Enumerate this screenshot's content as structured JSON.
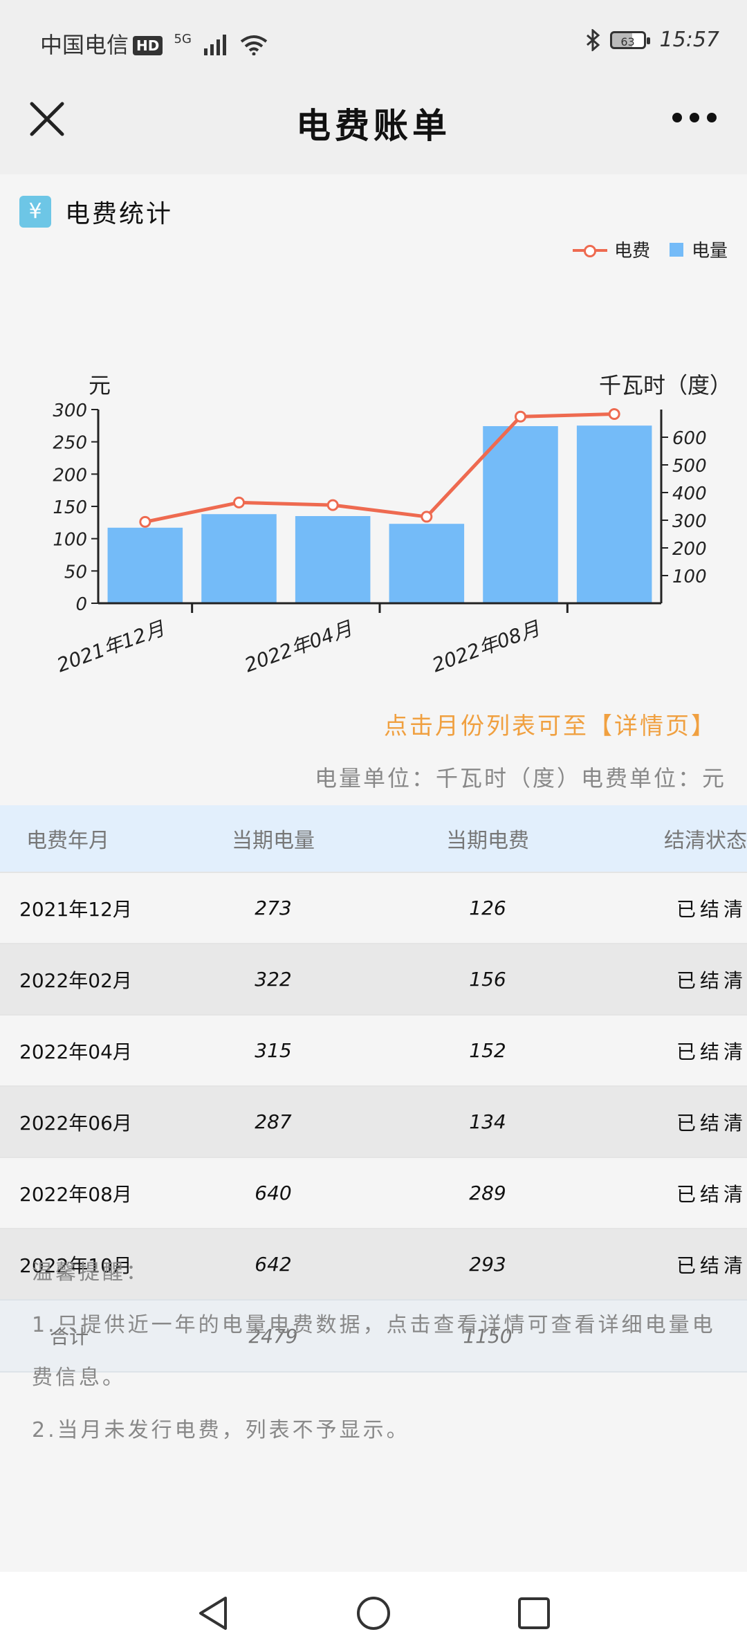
{
  "status_bar": {
    "carrier": "中国电信",
    "hd_badge": "HD",
    "network": "5G",
    "battery": "63",
    "time": "15:57"
  },
  "nav": {
    "title": "电费账单"
  },
  "section": {
    "icon": "¥",
    "title": "电费统计"
  },
  "legend": {
    "fee": "电费",
    "usage": "电量"
  },
  "chart_data": {
    "type": "bar",
    "categories": [
      "2021年12月",
      "2022年02月",
      "2022年04月",
      "2022年06月",
      "2022年08月",
      "2022年10月"
    ],
    "x_tick_labels": [
      "2021年12月",
      "2022年04月",
      "2022年08月"
    ],
    "series": [
      {
        "name": "电量",
        "type": "bar",
        "axis": "right",
        "values": [
          273,
          322,
          315,
          287,
          640,
          642
        ],
        "color": "#74bbf8"
      },
      {
        "name": "电费",
        "type": "line",
        "axis": "left",
        "values": [
          126,
          156,
          152,
          134,
          289,
          293
        ],
        "color": "#ee6a50"
      }
    ],
    "ylabel_left": "元",
    "ylabel_right": "千瓦时（度）",
    "yticks_left": [
      "0",
      "50",
      "100",
      "150",
      "200",
      "250",
      "300"
    ],
    "yticks_right": [
      "100",
      "200",
      "300",
      "400",
      "500",
      "600"
    ],
    "ylim_left": [
      0,
      300
    ],
    "ylim_right": [
      0,
      700
    ],
    "grid": false,
    "legend_position": "top-right"
  },
  "hint_text": "点击月份列表可至【详情页】",
  "unit_text": "电量单位：千瓦时（度）电费单位：元",
  "table": {
    "headers": [
      "电费年月",
      "当期电量",
      "当期电费",
      "结清状态"
    ],
    "rows": [
      {
        "month": "2021年12月",
        "usage": "273",
        "fee": "126",
        "status": "已结清"
      },
      {
        "month": "2022年02月",
        "usage": "322",
        "fee": "156",
        "status": "已结清"
      },
      {
        "month": "2022年04月",
        "usage": "315",
        "fee": "152",
        "status": "已结清"
      },
      {
        "month": "2022年06月",
        "usage": "287",
        "fee": "134",
        "status": "已结清"
      },
      {
        "month": "2022年08月",
        "usage": "640",
        "fee": "289",
        "status": "已结清"
      },
      {
        "month": "2022年10月",
        "usage": "642",
        "fee": "293",
        "status": "已结清"
      }
    ],
    "total": {
      "label": "合计",
      "usage": "2479",
      "fee": "1150"
    }
  },
  "notice": {
    "title": "温馨提醒：",
    "line1": "1.只提供近一年的电量电费数据，点击查看详情可查看详细电量电费信息。",
    "line2": "2.当月未发行电费，列表不予显示。"
  }
}
